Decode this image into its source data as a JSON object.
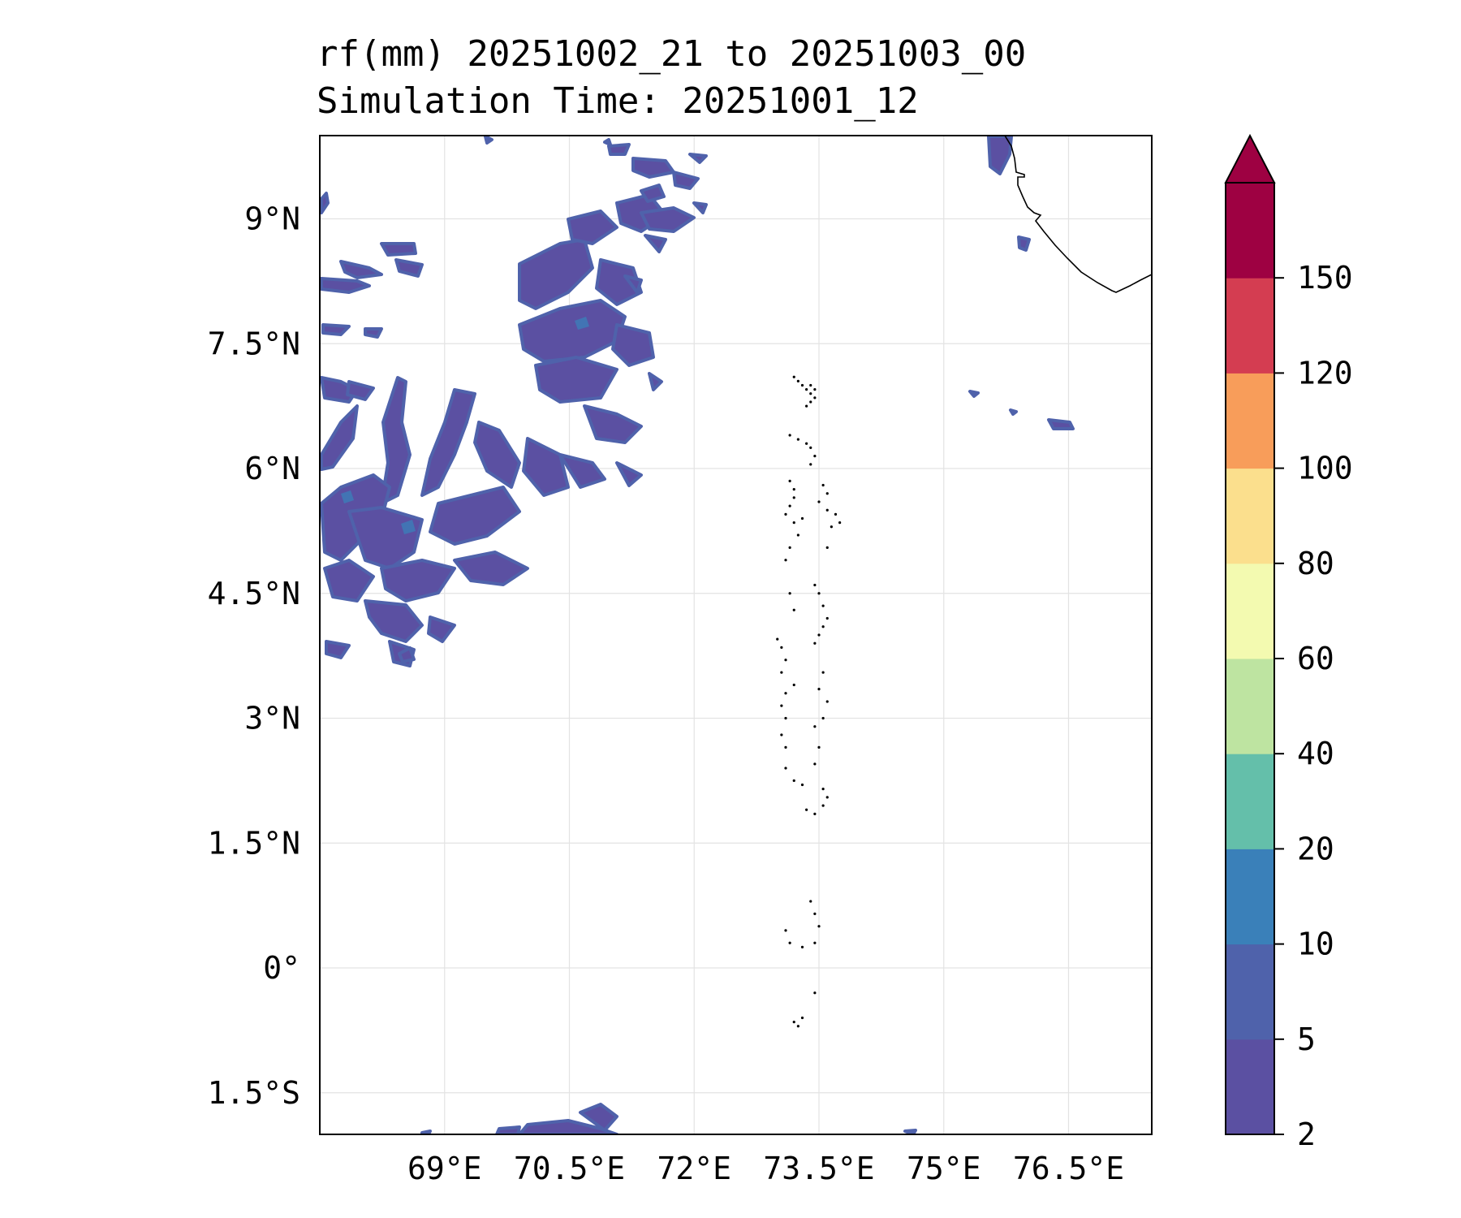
{
  "title": {
    "line1": "rf(mm) 20251002_21 to 20251003_00",
    "line2": "Simulation Time: 20251001_12"
  },
  "map": {
    "lon_range": [
      67.5,
      77.5
    ],
    "lat_range": [
      -2.0,
      10.0
    ],
    "lon_ticks": [
      69,
      70.5,
      72,
      73.5,
      75,
      76.5
    ],
    "lat_ticks": [
      9,
      7.5,
      6,
      4.5,
      3,
      1.5,
      0,
      -1.5
    ],
    "lon_tick_labels": [
      "69°E",
      "70.5°E",
      "72°E",
      "73.5°E",
      "75°E",
      "76.5°E"
    ],
    "lat_tick_labels": [
      "9°N",
      "7.5°N",
      "6°N",
      "4.5°N",
      "3°N",
      "1.5°N",
      "0°",
      "1.5°S"
    ],
    "gridlines": true,
    "coastline": "Southern tip of India (top-right) and the Maldives atoll chain along ~73.0–73.7°E",
    "rainfall_note": "Light rain (2–10 mm) scattered over the north-west quadrant; a few patches near the southern edge and off south-west India"
  },
  "colorbar": {
    "levels": [
      2,
      5,
      10,
      20,
      40,
      60,
      80,
      100,
      120,
      150
    ],
    "level_labels": [
      "2",
      "5",
      "10",
      "20",
      "40",
      "60",
      "80",
      "100",
      "120",
      "150"
    ],
    "colors": [
      "#5b50a2",
      "#4f62ab",
      "#3a80b9",
      "#64bfaa",
      "#bee4a1",
      "#f3fab0",
      "#fbdf8d",
      "#f89d5a",
      "#d43d51",
      "#9e0142"
    ],
    "extend": "max"
  }
}
